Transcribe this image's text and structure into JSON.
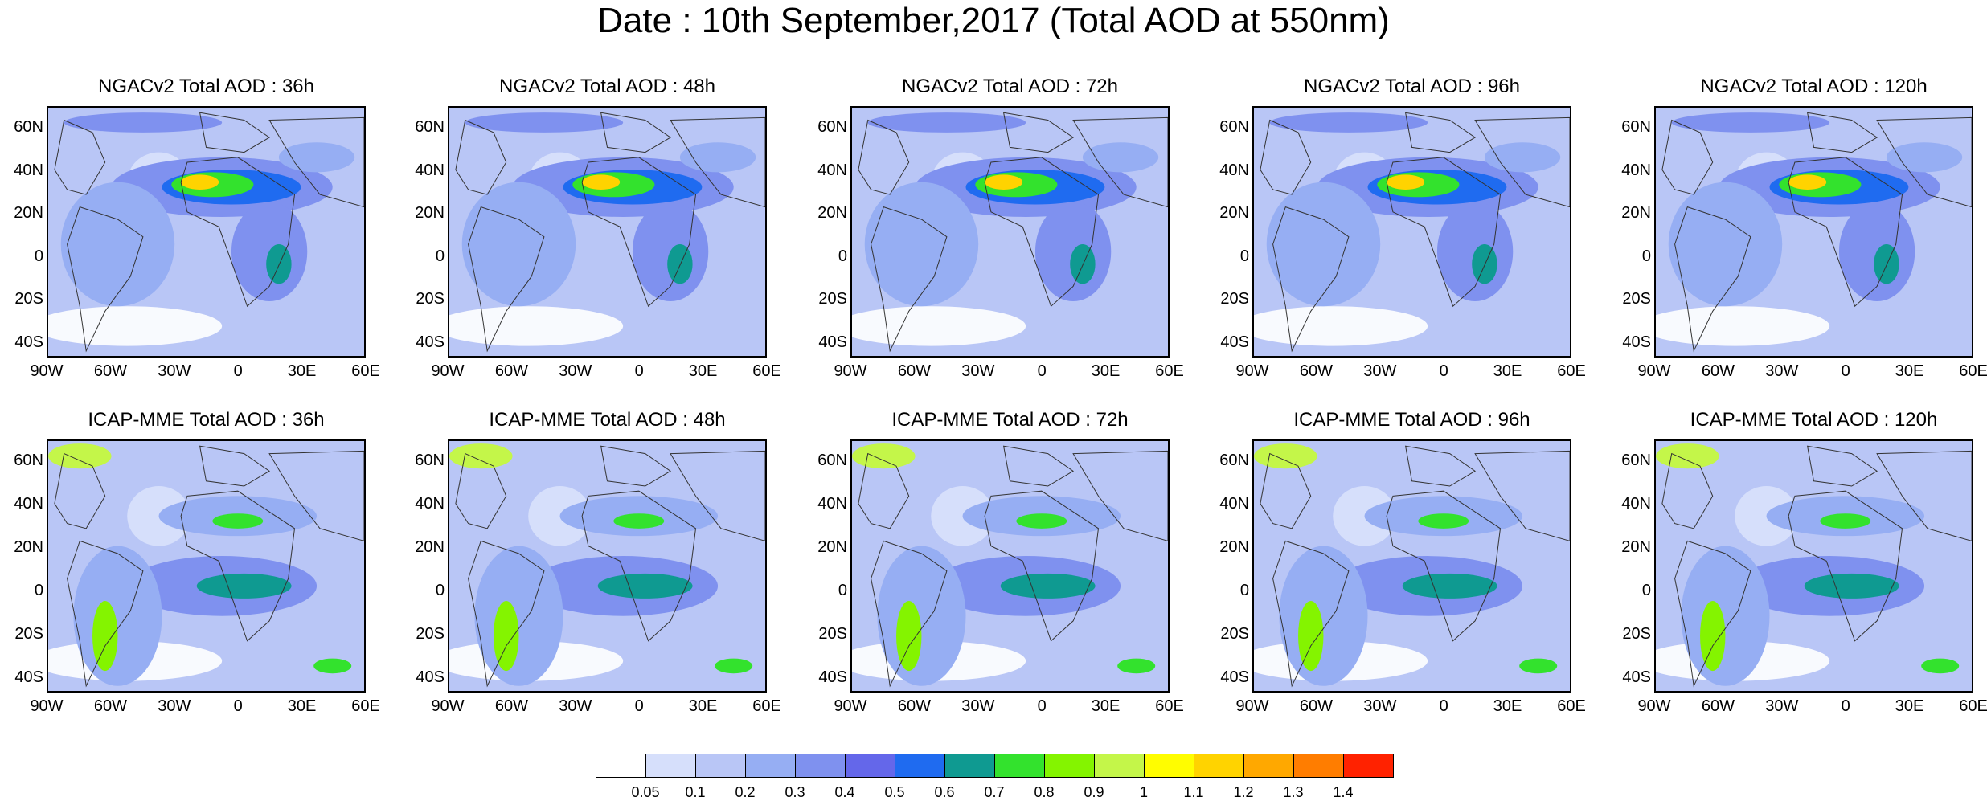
{
  "title": "Date : 10th September,2017 (Total AOD at 550nm)",
  "rows": [
    {
      "model": "NGACv2",
      "panels": [
        {
          "title": "NGACv2 Total AOD : 36h"
        },
        {
          "title": "NGACv2 Total AOD : 48h"
        },
        {
          "title": "NGACv2 Total AOD : 72h"
        },
        {
          "title": "NGACv2 Total AOD : 96h"
        },
        {
          "title": "NGACv2 Total AOD : 120h"
        }
      ]
    },
    {
      "model": "ICAP-MME",
      "panels": [
        {
          "title": "ICAP-MME Total AOD : 36h"
        },
        {
          "title": "ICAP-MME Total AOD : 48h"
        },
        {
          "title": "ICAP-MME Total AOD : 72h"
        },
        {
          "title": "ICAP-MME Total AOD : 96h"
        },
        {
          "title": "ICAP-MME Total AOD : 120h"
        }
      ]
    }
  ],
  "lat_ticks": [
    "60N",
    "40N",
    "20N",
    "0",
    "20S",
    "40S"
  ],
  "lon_ticks": [
    "90W",
    "60W",
    "30W",
    "0",
    "30E",
    "60E"
  ],
  "colorbar": {
    "colors": [
      "#ffffff",
      "#d6dffb",
      "#b9c6f6",
      "#96aef3",
      "#7f91ef",
      "#6467ea",
      "#1f6bf0",
      "#0f9a91",
      "#33e22d",
      "#84f400",
      "#c4f649",
      "#fffd00",
      "#ffd300",
      "#ffa800",
      "#ff7d00",
      "#ff2200"
    ],
    "labels": [
      "0.05",
      "0.1",
      "0.2",
      "0.3",
      "0.4",
      "0.5",
      "0.6",
      "0.7",
      "0.8",
      "0.9",
      "1",
      "1.1",
      "1.2",
      "1.3",
      "1.4"
    ]
  }
}
